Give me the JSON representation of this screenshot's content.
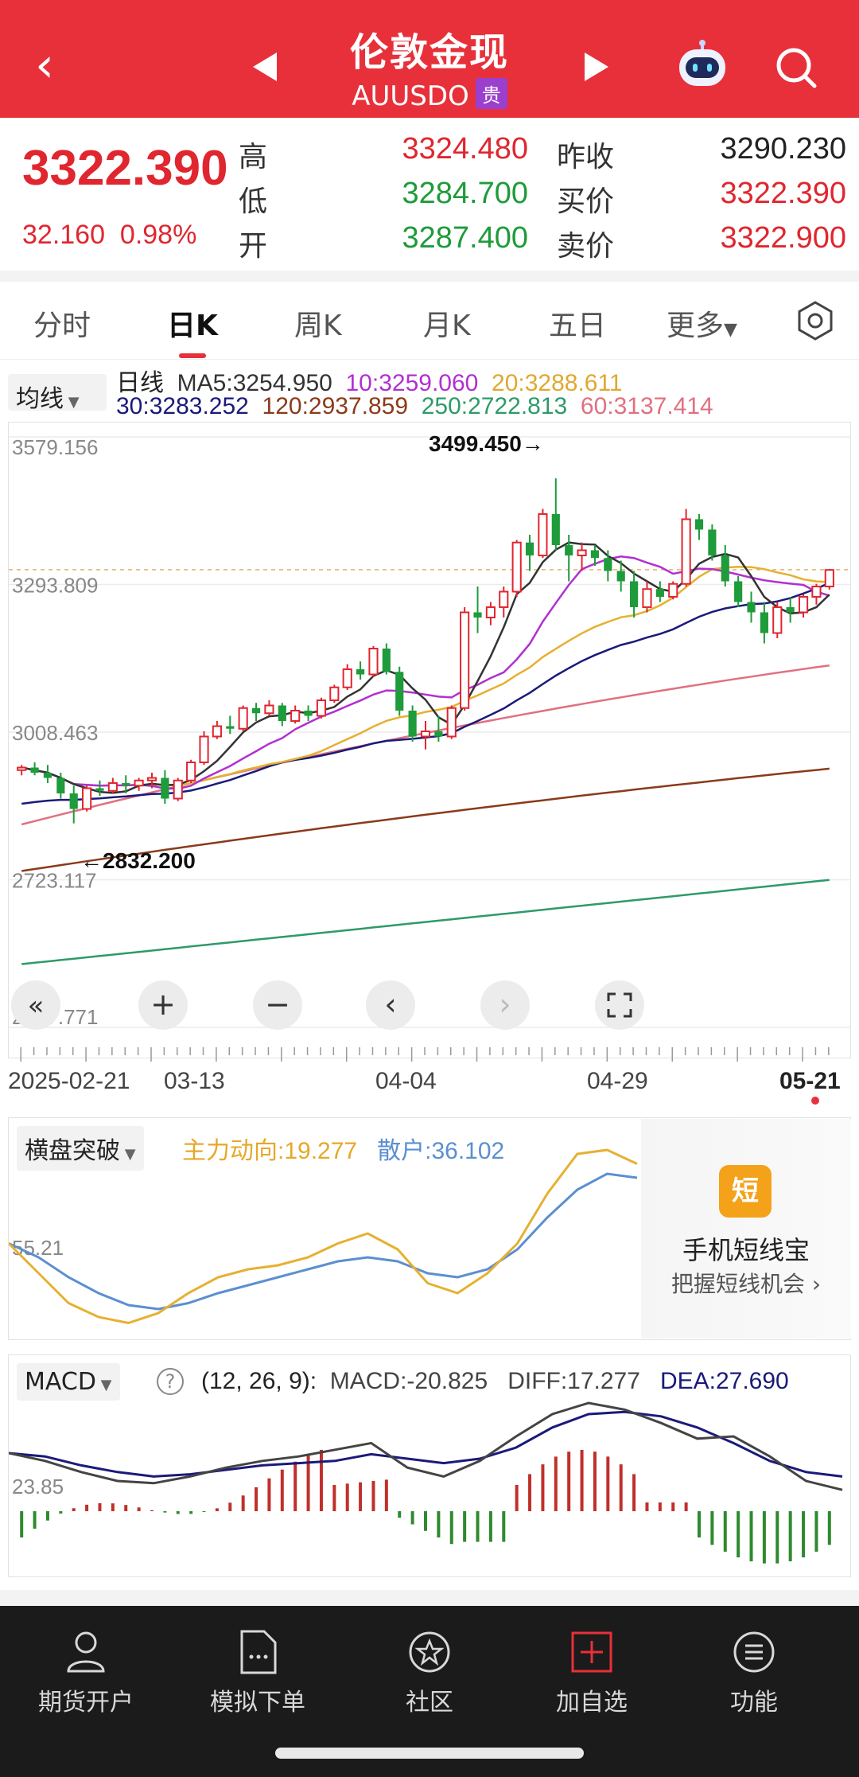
{
  "header": {
    "title": "伦敦金现",
    "symbol": "AUUSDO",
    "badge": "贵"
  },
  "quote": {
    "price": "3322.390",
    "change": "32.160",
    "change_pct": "0.98%",
    "high_label": "高",
    "high": "3324.480",
    "low_label": "低",
    "low": "3284.700",
    "open_label": "开",
    "open": "3287.400",
    "prev_close_label": "昨收",
    "prev_close": "3290.230",
    "bid_label": "买价",
    "bid": "3322.390",
    "ask_label": "卖价",
    "ask": "3322.900"
  },
  "tabs": [
    {
      "label": "分时"
    },
    {
      "label": "日K"
    },
    {
      "label": "周K"
    },
    {
      "label": "月K"
    },
    {
      "label": "五日"
    },
    {
      "label": "更多"
    }
  ],
  "ma": {
    "selector": "均线",
    "day_label": "日线",
    "ma5": "MA5:3254.950",
    "ma10": "10:3259.060",
    "ma20": "20:3288.611",
    "ma30": "30:3283.252",
    "ma120": "120:2937.859",
    "ma250": "250:2722.813",
    "ma60": "60:3137.414",
    "colors": {
      "ma5": "#333333",
      "ma10": "#b130d0",
      "ma20": "#e6b030",
      "ma30": "#1a1a7a",
      "ma120": "#8b3a1a",
      "ma250": "#2e9a6a",
      "ma60": "#e07080"
    }
  },
  "chart": {
    "y_ticks": [
      "3579.156",
      "3293.809",
      "3008.463",
      "2723.117",
      "2437.771"
    ],
    "max_annotation": "3499.450→",
    "min_annotation": "←2832.200",
    "dates": [
      "2025-02-21",
      "03-13",
      "04-04",
      "04-29",
      "05-21"
    ]
  },
  "chart_data": {
    "type": "candlestick",
    "x_range": [
      "2025-02-21",
      "2025-05-21"
    ],
    "ylim": [
      2437.771,
      3579.156
    ],
    "y_ticks": [
      3579.156,
      3293.809,
      3008.463,
      2723.117,
      2437.771
    ],
    "x_ticks": [
      "2025-02-21",
      "03-13",
      "04-04",
      "04-29",
      "05-21"
    ],
    "high": 3499.45,
    "low": 2832.2,
    "last_close": 3322.39,
    "ohlc": [
      [
        2935,
        2945,
        2925,
        2940
      ],
      [
        2940,
        2950,
        2925,
        2930
      ],
      [
        2930,
        2945,
        2910,
        2920
      ],
      [
        2920,
        2930,
        2880,
        2890
      ],
      [
        2890,
        2905,
        2832,
        2860
      ],
      [
        2860,
        2905,
        2855,
        2900
      ],
      [
        2900,
        2915,
        2885,
        2895
      ],
      [
        2895,
        2920,
        2890,
        2910
      ],
      [
        2910,
        2925,
        2890,
        2905
      ],
      [
        2905,
        2920,
        2895,
        2915
      ],
      [
        2915,
        2930,
        2900,
        2920
      ],
      [
        2920,
        2935,
        2870,
        2880
      ],
      [
        2880,
        2920,
        2875,
        2915
      ],
      [
        2915,
        2955,
        2910,
        2950
      ],
      [
        2950,
        3010,
        2945,
        3000
      ],
      [
        3000,
        3030,
        2995,
        3020
      ],
      [
        3020,
        3040,
        3005,
        3015
      ],
      [
        3015,
        3060,
        3010,
        3055
      ],
      [
        3055,
        3065,
        3030,
        3045
      ],
      [
        3045,
        3070,
        3040,
        3060
      ],
      [
        3060,
        3065,
        3020,
        3030
      ],
      [
        3030,
        3060,
        3025,
        3050
      ],
      [
        3050,
        3060,
        3030,
        3040
      ],
      [
        3040,
        3075,
        3035,
        3070
      ],
      [
        3070,
        3100,
        3065,
        3095
      ],
      [
        3095,
        3140,
        3090,
        3130
      ],
      [
        3130,
        3145,
        3110,
        3120
      ],
      [
        3120,
        3175,
        3115,
        3170
      ],
      [
        3170,
        3180,
        3120,
        3125
      ],
      [
        3125,
        3135,
        3040,
        3050
      ],
      [
        3050,
        3060,
        2990,
        3000
      ],
      [
        3000,
        3030,
        2975,
        3010
      ],
      [
        3010,
        3040,
        2990,
        3000
      ],
      [
        3000,
        3060,
        2995,
        3055
      ],
      [
        3055,
        3250,
        3050,
        3240
      ],
      [
        3240,
        3290,
        3200,
        3230
      ],
      [
        3230,
        3260,
        3215,
        3250
      ],
      [
        3250,
        3290,
        3230,
        3280
      ],
      [
        3280,
        3380,
        3270,
        3375
      ],
      [
        3375,
        3390,
        3320,
        3350
      ],
      [
        3350,
        3440,
        3345,
        3430
      ],
      [
        3430,
        3499,
        3360,
        3370
      ],
      [
        3370,
        3390,
        3300,
        3350
      ],
      [
        3350,
        3375,
        3320,
        3360
      ],
      [
        3360,
        3370,
        3330,
        3345
      ],
      [
        3345,
        3360,
        3300,
        3320
      ],
      [
        3320,
        3340,
        3280,
        3300
      ],
      [
        3300,
        3320,
        3230,
        3250
      ],
      [
        3250,
        3300,
        3240,
        3285
      ],
      [
        3285,
        3300,
        3260,
        3270
      ],
      [
        3270,
        3300,
        3265,
        3295
      ],
      [
        3295,
        3440,
        3290,
        3420
      ],
      [
        3420,
        3430,
        3380,
        3400
      ],
      [
        3400,
        3410,
        3340,
        3350
      ],
      [
        3350,
        3370,
        3290,
        3300
      ],
      [
        3300,
        3310,
        3250,
        3260
      ],
      [
        3260,
        3280,
        3220,
        3240
      ],
      [
        3240,
        3260,
        3180,
        3200
      ],
      [
        3200,
        3260,
        3190,
        3250
      ],
      [
        3250,
        3270,
        3220,
        3240
      ],
      [
        3240,
        3275,
        3230,
        3270
      ],
      [
        3270,
        3295,
        3255,
        3290
      ],
      [
        3290,
        3324,
        3284,
        3322
      ]
    ]
  },
  "controls": {
    "rewind_icon": "double-chevron-left",
    "zoom_in": "+",
    "zoom_out": "−",
    "prev": "‹",
    "next": "›",
    "fullscreen_icon": "fullscreen"
  },
  "indicator": {
    "selector": "横盘突破",
    "main_force": "主力动向:19.277",
    "retail": "散户:36.102",
    "y_label": "55.21",
    "colors": {
      "main_force": "#e6b030",
      "retail": "#5b8fd0"
    }
  },
  "promo": {
    "icon_char": "短",
    "title": "手机短线宝",
    "subtitle": "把握短线机会 ›"
  },
  "macd": {
    "selector": "MACD",
    "params": "(12, 26, 9):",
    "macd": "MACD:-20.825",
    "diff": "DIFF:17.277",
    "dea": "DEA:27.690",
    "y_label": "23.85",
    "colors": {
      "diff": "#444444",
      "dea": "#1a1a7a",
      "up": "#c0302a",
      "down": "#2e8a2e"
    }
  },
  "bottom_nav": [
    {
      "label": "期货开户",
      "icon": "person-card-icon"
    },
    {
      "label": "模拟下单",
      "icon": "document-icon"
    },
    {
      "label": "社区",
      "icon": "star-circle-icon"
    },
    {
      "label": "加自选",
      "icon": "plus-box-icon"
    },
    {
      "label": "功能",
      "icon": "menu-circle-icon"
    }
  ]
}
